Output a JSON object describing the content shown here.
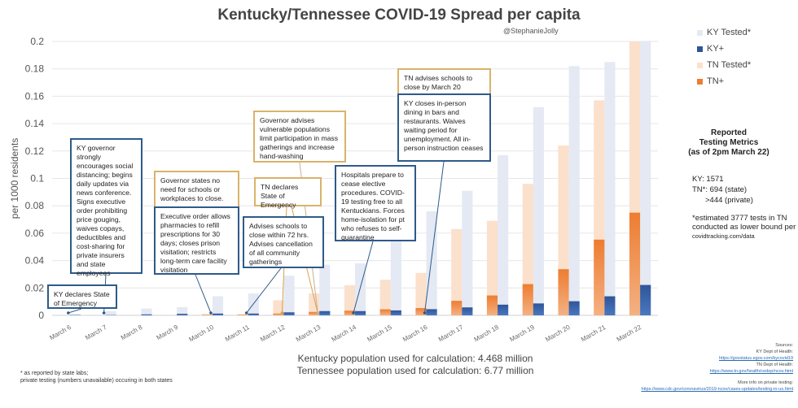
{
  "chart_data": {
    "type": "bar",
    "title": "Kentucky/Tennessee COVID-19 Spread per capita",
    "subtitle": "@StephanieJolly",
    "xlabel": "",
    "ylabel": "per 1000  residents",
    "ylim": [
      0,
      0.2
    ],
    "yticks": [
      "0",
      "0.02",
      "0.04",
      "0.06",
      "0.08",
      "0.1",
      "0.12",
      "0.14",
      "0.16",
      "0.18",
      "0.2"
    ],
    "ytick_values": [
      0,
      0.02,
      0.04,
      0.06,
      0.08,
      0.1,
      0.12,
      0.14,
      0.16,
      0.18,
      0.2
    ],
    "grid": true,
    "legend_position": "top-right",
    "categories": [
      "March 6",
      "March 7",
      "March 8",
      "March 9",
      "March 10",
      "March 11",
      "March 12",
      "March 13",
      "March 14",
      "March 15",
      "March 16",
      "March 17",
      "March 18",
      "March 19",
      "March 20",
      "March 21",
      "March 22"
    ],
    "series": [
      {
        "name": "TN Tested*",
        "color": "#fbe0cc",
        "values": [
          0,
          0,
          0,
          0,
          0.001,
          0.001,
          0.011,
          0.016,
          0.022,
          0.026,
          0.031,
          0.063,
          0.069,
          0.096,
          0.124,
          0.157,
          0.2
        ]
      },
      {
        "name": "TN+",
        "color": "#ed7d31",
        "values": [
          0,
          0,
          0,
          0,
          0.0004,
          0.0004,
          0.0013,
          0.0025,
          0.0034,
          0.0044,
          0.0053,
          0.0106,
          0.0145,
          0.0228,
          0.0337,
          0.0553,
          0.075
        ]
      },
      {
        "name": "KY Tested*",
        "color": "#e4e9f3",
        "values": [
          0.001,
          0.003,
          0.005,
          0.006,
          0.014,
          0.016,
          0.029,
          0.037,
          0.038,
          0.055,
          0.076,
          0.091,
          0.117,
          0.152,
          0.182,
          0.185,
          0.2
        ]
      },
      {
        "name": "KY+",
        "color": "#2f5597",
        "values": [
          0.0002,
          0.0002,
          0.0007,
          0.0011,
          0.0013,
          0.0013,
          0.0022,
          0.0031,
          0.0031,
          0.0036,
          0.0045,
          0.0058,
          0.0078,
          0.0087,
          0.0103,
          0.0139,
          0.0222
        ]
      }
    ],
    "legend": [
      {
        "name": "KY Tested*",
        "color": "#e4e9f3"
      },
      {
        "name": "KY+",
        "color": "#2f5597"
      },
      {
        "name": "TN Tested*",
        "color": "#fbe0cc"
      },
      {
        "name": "TN+",
        "color": "#ed7d31"
      }
    ],
    "annotations": [
      {
        "id": "ky-emergency",
        "state": "KY",
        "date": "March 6",
        "text": "KY declares State of Emergency"
      },
      {
        "id": "ky-distancing",
        "state": "KY",
        "date": "March 7",
        "text": "KY governor strongly encourages social distancing; begins daily updates via news conference. Signs executive order prohibiting price gouging, waives copays, deductibles and cost-sharing for private insurers and state employees"
      },
      {
        "id": "tn-no-close",
        "state": "TN",
        "date": "March 10",
        "text": "Governor states no need for schools or workplaces to close."
      },
      {
        "id": "ky-pharmacies",
        "state": "KY",
        "date": "March 10",
        "text": "Executive order allows pharmacies to refill prescriptions for 30 days; closes prison visitation; restricts long-term care facility visitation"
      },
      {
        "id": "tn-vulnerable",
        "state": "TN",
        "date": "March 13",
        "text": "Governor advises vulnerable populations limit participation in mass gatherings and increase hand-washing"
      },
      {
        "id": "tn-emergency",
        "state": "TN",
        "date": "March 12",
        "text": "TN declares State of Emergency"
      },
      {
        "id": "ky-schools-72",
        "state": "KY",
        "date": "March 11",
        "text": "Advises schools to close within 72 hrs. Advises cancellation of all community gatherings"
      },
      {
        "id": "ky-hospitals",
        "state": "KY",
        "date": "March 14",
        "text": "Hospitals prepare to cease elective procedures. COVID-19 testing free to all Kentuckians. Forces home-isolation for pt who refuses to self-quarantine"
      },
      {
        "id": "tn-schools-20",
        "state": "TN",
        "date": "March 16",
        "text": "TN advises schools to close by March 20"
      },
      {
        "id": "ky-dining",
        "state": "KY",
        "date": "March 16",
        "text": "KY closes in-person dining in bars and restaurants. Waives waiting period for unemployment. All in-person instruction ceases"
      }
    ]
  },
  "metrics": {
    "title_line1": "Reported",
    "title_line2": "Testing Metrics",
    "title_line3": "(as of 2pm March 22)",
    "ky": "KY:  1571",
    "tn_state": "TN*:  694 (state)",
    "tn_private": ">444 (private)",
    "estimate": "*estimated 3777 tests in TN conducted as lower bound per",
    "estimate_source": "covidtracking.com/data"
  },
  "population": {
    "ky": "Kentucky population used for calculation: 4.468 million",
    "tn": "Tennessee population used for calculation: 6.77 million"
  },
  "footnote": {
    "line1": "*  as reported by state labs;",
    "line2": "private testing (numbers unavailable) occuring in both states"
  },
  "sources": {
    "label": "Sources:",
    "ky_label": "KY Dept of Health:",
    "ky_url": "https://govstatus.egov.com/kycovid19",
    "tn_label": "TN Dept of Health:",
    "tn_url": "https://www.tn.gov/health/cedep/ncov.html",
    "private_label": "More info on private testing:",
    "private_url": "https://www.cdc.gov/coronavirus/2019-ncov/cases-updates/testing-in-us.html"
  }
}
